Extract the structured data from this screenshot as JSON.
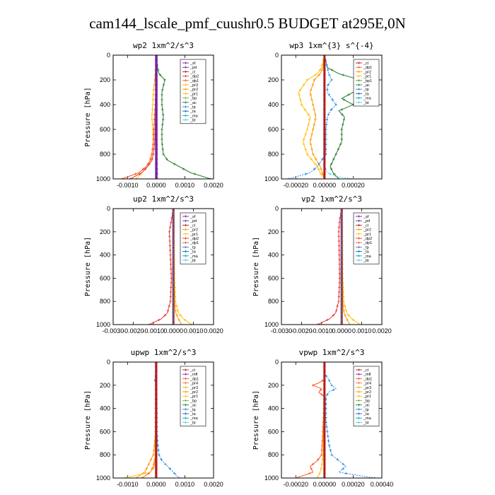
{
  "figure_title": "cam144_lscale_pmf_cuushr0.5  BUDGET at295E,0N",
  "colors": {
    "_sf": "#7b1fa2",
    "_pd": "#5e35b1",
    "_cl": "#b71c1c",
    "_dp2": "#e53935",
    "_dp1": "#ff5722",
    "_pr2": "#ff9800",
    "_pr3": "#ffb300",
    "_pr1": "#ffc107",
    "_pr4": "#ff7043",
    "_mfl": "#8e24aa",
    "_bp": "#7cb342",
    "_bp1": "#43a047",
    "_ac": "#2e7d32",
    "_tp": "#1e88e5",
    "_ta": "#1565c0",
    "_ma": "#00acc1",
    "_bt": "#4dd0e1"
  },
  "chart_data": [
    {
      "type": "line",
      "title": "wp2  1xm^2/s^3",
      "ylabel": "Pressure [hPa]",
      "xlim": [
        -0.0015,
        0.002
      ],
      "ylim": [
        1000,
        0
      ],
      "xticks": [
        -0.001,
        0.0,
        0.001,
        0.002
      ],
      "xtick_labels": [
        "-0.0010",
        "0.0000",
        "0.0010",
        "0.0020"
      ],
      "yticks": [
        0,
        200,
        400,
        600,
        800,
        1000
      ],
      "ytick_labels": [
        "0",
        "200",
        "400",
        "600",
        "800",
        "1000"
      ],
      "legend": [
        "_sf",
        "_pd",
        "_cl",
        "_dp2",
        "_dp1",
        "_pr3",
        "_pr2",
        "_pr1",
        "_bp",
        "_ac",
        "_tp",
        "_ta",
        "_ma",
        "_bt"
      ],
      "series": [
        {
          "name": "_ac",
          "p": [
            0,
            100,
            150,
            200,
            300,
            400,
            500,
            600,
            700,
            800,
            850,
            900,
            950,
            1000
          ],
          "values": [
            0,
            5e-05,
            0.0001,
            0.0003,
            0.0002,
            0.0002,
            0.00025,
            0.0002,
            0.0002,
            0.00025,
            0.0004,
            0.0008,
            0.0012,
            0.0019
          ]
        },
        {
          "name": "_pr1",
          "p": [
            0,
            100,
            200,
            300,
            400,
            500,
            600,
            700,
            800,
            900,
            1000
          ],
          "values": [
            0,
            -2e-05,
            -5e-05,
            -0.0001,
            -0.00012,
            -0.00015,
            -0.00012,
            -0.0001,
            -0.00015,
            -0.0003,
            -0.0007
          ]
        },
        {
          "name": "_dp1",
          "p": [
            0,
            200,
            400,
            600,
            700,
            800,
            850,
            900,
            950,
            1000
          ],
          "values": [
            0,
            -1e-05,
            -3e-05,
            -8e-05,
            -0.0001,
            -0.00015,
            -0.0002,
            -0.00035,
            -0.0006,
            -0.0012
          ]
        },
        {
          "name": "_dp2",
          "p": [
            0,
            400,
            700,
            800,
            850,
            900,
            950,
            1000
          ],
          "values": [
            0,
            -1e-05,
            -5e-05,
            -0.0001,
            -0.00015,
            -0.0003,
            -0.0005,
            -0.0009
          ]
        },
        {
          "name": "_tp",
          "p": [
            0,
            500,
            900,
            1000
          ],
          "values": [
            0,
            1e-05,
            3e-05,
            4e-05
          ]
        },
        {
          "name": "_pd",
          "p": [
            0,
            1000
          ],
          "values": [
            0,
            0
          ]
        },
        {
          "name": "_sf",
          "p": [
            0,
            1000
          ],
          "values": [
            1e-05,
            1e-05
          ]
        }
      ]
    },
    {
      "type": "line",
      "title": "wp3  1xm^{3} s^{-4}",
      "ylabel": "",
      "xlim": [
        -0.0003,
        0.0004
      ],
      "ylim": [
        1000,
        0
      ],
      "xticks": [
        -0.0002,
        0.0,
        0.0002
      ],
      "xtick_labels": [
        "-0.00020",
        "0.00000",
        "0.00020"
      ],
      "yticks": [
        0,
        200,
        400,
        600,
        800,
        1000
      ],
      "ytick_labels": [
        "0",
        "200",
        "400",
        "600",
        "800",
        "1000"
      ],
      "legend": [
        "_cl",
        "_dp1",
        "_pr2",
        "_pr1",
        "_bp1",
        "_ac",
        "_tp",
        "_ta",
        "_ma",
        "_bt"
      ],
      "series": [
        {
          "name": "_ac",
          "p": [
            0,
            100,
            150,
            200,
            250,
            300,
            350,
            400,
            450,
            500,
            600,
            700,
            800,
            900,
            950,
            1000
          ],
          "values": [
            0,
            2e-05,
            0.0001,
            0.00025,
            0.00033,
            0.0002,
            0.00012,
            0.0002,
            0.0001,
            0.00014,
            0.00012,
            0.00012,
            8e-05,
            4e-05,
            6e-05,
            0.0001
          ]
        },
        {
          "name": "_pr1",
          "p": [
            0,
            100,
            150,
            200,
            300,
            400,
            500,
            600,
            700,
            800,
            900,
            950,
            1000
          ],
          "values": [
            0,
            -2e-05,
            -5e-05,
            -0.00012,
            -0.00018,
            -0.00016,
            -0.0001,
            -0.00012,
            -0.00015,
            -0.00012,
            -5e-05,
            -3e-05,
            0
          ]
        },
        {
          "name": "_pr2",
          "p": [
            0,
            100,
            150,
            200,
            300,
            400,
            500,
            600,
            700,
            800,
            900,
            1000
          ],
          "values": [
            0,
            -1e-05,
            -3e-05,
            -7e-05,
            -0.0001,
            -8e-05,
            -6e-05,
            -8e-05,
            -0.0001,
            -8e-05,
            -3e-05,
            0
          ]
        },
        {
          "name": "_tp",
          "p": [
            0,
            150,
            200,
            250,
            300,
            350,
            400,
            450,
            500,
            600,
            700,
            800,
            900,
            950,
            1000
          ],
          "values": [
            0,
            3e-05,
            5e-05,
            2e-05,
            2e-05,
            5e-05,
            8e-05,
            4e-05,
            2e-05,
            1e-05,
            1e-05,
            1e-05,
            -5e-05,
            -0.0001,
            -0.00025
          ]
        },
        {
          "name": "_bt",
          "p": [
            0,
            900,
            950,
            980,
            1000
          ],
          "values": [
            0,
            0,
            2e-05,
            8e-05,
            0.0002
          ]
        },
        {
          "name": "_cl",
          "p": [
            0,
            1000
          ],
          "values": [
            0,
            0
          ]
        }
      ]
    },
    {
      "type": "line",
      "title": "up2  1xm^2/s^3",
      "ylabel": "Pressure [hPa]",
      "xlim": [
        -0.003,
        0.002
      ],
      "ylim": [
        1000,
        0
      ],
      "xticks": [
        -0.003,
        -0.002,
        -0.001,
        0.0,
        0.001,
        0.002
      ],
      "xtick_labels": [
        "-0.0030",
        "-0.0020",
        "-0.0010",
        "0.0000",
        "0.0010",
        "0.0020"
      ],
      "yticks": [
        0,
        200,
        400,
        600,
        800,
        1000
      ],
      "ytick_labels": [
        "0",
        "200",
        "400",
        "600",
        "800",
        "1000"
      ],
      "legend": [
        "_sf",
        "_pd",
        "_cl",
        "_pr2",
        "_pr1",
        "_dp2",
        "_dp1",
        "_tp",
        "_ta",
        "_ma",
        "_bt"
      ],
      "series": [
        {
          "name": "_dp2",
          "p": [
            0,
            100,
            200,
            400,
            600,
            800,
            900,
            950,
            1000
          ],
          "values": [
            0,
            -0.0001,
            -0.0002,
            -0.00015,
            -0.0001,
            -0.00015,
            -0.0003,
            -0.0006,
            -0.0012
          ]
        },
        {
          "name": "_pr1",
          "p": [
            0,
            200,
            600,
            800,
            900,
            950,
            1000
          ],
          "values": [
            0,
            2e-05,
            5e-05,
            0.0001,
            0.00025,
            0.0005,
            0.0009
          ]
        },
        {
          "name": "_pr2",
          "p": [
            0,
            400,
            800,
            900,
            950,
            1000
          ],
          "values": [
            0,
            2e-05,
            5e-05,
            0.00012,
            0.00025,
            0.0004
          ]
        },
        {
          "name": "_cl",
          "p": [
            0,
            1000
          ],
          "values": [
            0,
            0
          ]
        },
        {
          "name": "_tp",
          "p": [
            0,
            1000
          ],
          "values": [
            0,
            0
          ]
        }
      ]
    },
    {
      "type": "line",
      "title": "vp2  1xm^2/s^3",
      "ylabel": "Pressure [hPa]",
      "xlim": [
        -0.003,
        0.002
      ],
      "ylim": [
        1000,
        0
      ],
      "xticks": [
        -0.003,
        -0.002,
        -0.001,
        0.0,
        0.001,
        0.002
      ],
      "xtick_labels": [
        "-0.0030",
        "-0.0020",
        "-0.0010",
        "0.0000",
        "0.0010",
        "0.0020"
      ],
      "yticks": [
        0,
        200,
        400,
        600,
        800,
        1000
      ],
      "ytick_labels": [
        "0",
        "200",
        "400",
        "600",
        "800",
        "1000"
      ],
      "legend": [
        "_sf",
        "_pd",
        "_cl",
        "_pr2",
        "_pr1",
        "_dp2",
        "_dp1",
        "_tp",
        "_ta",
        "_ma",
        "_bt"
      ],
      "series": [
        {
          "name": "_dp2",
          "p": [
            0,
            100,
            200,
            400,
            600,
            800,
            900,
            950,
            1000
          ],
          "values": [
            0,
            -0.0001,
            -0.00015,
            -0.00012,
            -0.0001,
            -0.00015,
            -0.0003,
            -0.0006,
            -0.0012
          ]
        },
        {
          "name": "_pr1",
          "p": [
            0,
            200,
            600,
            800,
            900,
            950,
            1000
          ],
          "values": [
            0,
            2e-05,
            5e-05,
            0.0001,
            0.00025,
            0.0005,
            0.0009
          ]
        },
        {
          "name": "_pr2",
          "p": [
            0,
            400,
            800,
            900,
            950,
            1000
          ],
          "values": [
            0,
            2e-05,
            5e-05,
            0.00012,
            0.00025,
            0.0004
          ]
        },
        {
          "name": "_cl",
          "p": [
            0,
            1000
          ],
          "values": [
            0,
            0
          ]
        },
        {
          "name": "_tp",
          "p": [
            0,
            1000
          ],
          "values": [
            0,
            0
          ]
        }
      ]
    },
    {
      "type": "line",
      "title": "upwp  1xm^2/s^3",
      "ylabel": "Pressure [hPa]",
      "xlim": [
        -0.0015,
        0.002
      ],
      "ylim": [
        1000,
        0
      ],
      "xticks": [
        -0.001,
        0.0,
        0.001,
        0.002
      ],
      "xtick_labels": [
        "-0.0010",
        "0.0000",
        "0.0010",
        "0.0020"
      ],
      "yticks": [
        0,
        200,
        400,
        600,
        800,
        1000
      ],
      "ytick_labels": [
        "0",
        "200",
        "400",
        "600",
        "800",
        "1000"
      ],
      "legend": [
        "_cl",
        "_mfl",
        "_dp1",
        "_pr4",
        "_pr3",
        "_pr2",
        "_pr1",
        "_bp",
        "_ac",
        "_tp",
        "_ta",
        "_ma",
        "_bt"
      ],
      "series": [
        {
          "name": "_tp",
          "p": [
            0,
            100,
            150,
            200,
            400,
            600,
            700,
            800,
            850,
            900,
            950,
            1000
          ],
          "values": [
            0,
            0,
            -5e-05,
            0,
            2e-05,
            3e-05,
            5e-05,
            0.0001,
            0.0002,
            0.0004,
            0.0006,
            0.0008
          ]
        },
        {
          "name": "_pr2",
          "p": [
            0,
            600,
            800,
            850,
            900,
            950,
            1000
          ],
          "values": [
            0,
            -2e-05,
            -0.0001,
            -0.0002,
            -0.0003,
            -0.0004,
            -0.0007
          ]
        },
        {
          "name": "_dp1",
          "p": [
            0,
            800,
            900,
            950,
            1000
          ],
          "values": [
            0,
            -2e-05,
            -0.0001,
            -0.0002,
            -0.0005
          ]
        },
        {
          "name": "_pr1",
          "p": [
            0,
            900,
            950,
            1000
          ],
          "values": [
            0,
            -5e-05,
            -0.0002,
            -0.0011
          ]
        },
        {
          "name": "_mfl",
          "p": [
            0,
            1000
          ],
          "values": [
            0,
            0
          ]
        },
        {
          "name": "_cl",
          "p": [
            0,
            1000
          ],
          "values": [
            0,
            0
          ]
        }
      ]
    },
    {
      "type": "line",
      "title": "vpwp  1xm^2/s^3",
      "ylabel": "Pressure [hPa]",
      "xlim": [
        -0.0003,
        0.0004
      ],
      "ylim": [
        1000,
        0
      ],
      "xticks": [
        -0.0002,
        0.0,
        0.0002,
        0.0004
      ],
      "xtick_labels": [
        "-0.00020",
        "0.00000",
        "0.00020",
        "0.00040"
      ],
      "yticks": [
        0,
        200,
        400,
        600,
        800,
        1000
      ],
      "ytick_labels": [
        "0",
        "200",
        "400",
        "600",
        "800",
        "1000"
      ],
      "legend": [
        "_cl",
        "_mfl",
        "_dp1",
        "_pr4",
        "_pr3",
        "_pr2",
        "_pr1",
        "_bp",
        "_ac",
        "_tp",
        "_ta",
        "_ma",
        "_bt"
      ],
      "series": [
        {
          "name": "_tp",
          "p": [
            0,
            100,
            150,
            200,
            230,
            260,
            300,
            400,
            500,
            600,
            700,
            800,
            850,
            900,
            950,
            1000
          ],
          "values": [
            0,
            0,
            3e-05,
            5e-05,
            8e-05,
            3e-05,
            1e-05,
            1e-05,
            1e-05,
            2e-05,
            3e-05,
            5e-05,
            0.0001,
            0.00015,
            0.0001,
            0.00035
          ]
        },
        {
          "name": "_dp1",
          "p": [
            0,
            150,
            180,
            200,
            230,
            260,
            300,
            800,
            850,
            900,
            950,
            1000
          ],
          "values": [
            0,
            0,
            -4e-05,
            -8e-05,
            -2e-05,
            -4e-05,
            0,
            -2e-05,
            -5e-05,
            -0.0001,
            -8e-05,
            -0.0002
          ]
        },
        {
          "name": "_pr1",
          "p": [
            0,
            800,
            900,
            950,
            1000
          ],
          "values": [
            0,
            -1e-05,
            -2e-05,
            -3e-05,
            -5e-05
          ]
        },
        {
          "name": "_cl",
          "p": [
            0,
            1000
          ],
          "values": [
            0,
            0
          ]
        }
      ]
    }
  ]
}
